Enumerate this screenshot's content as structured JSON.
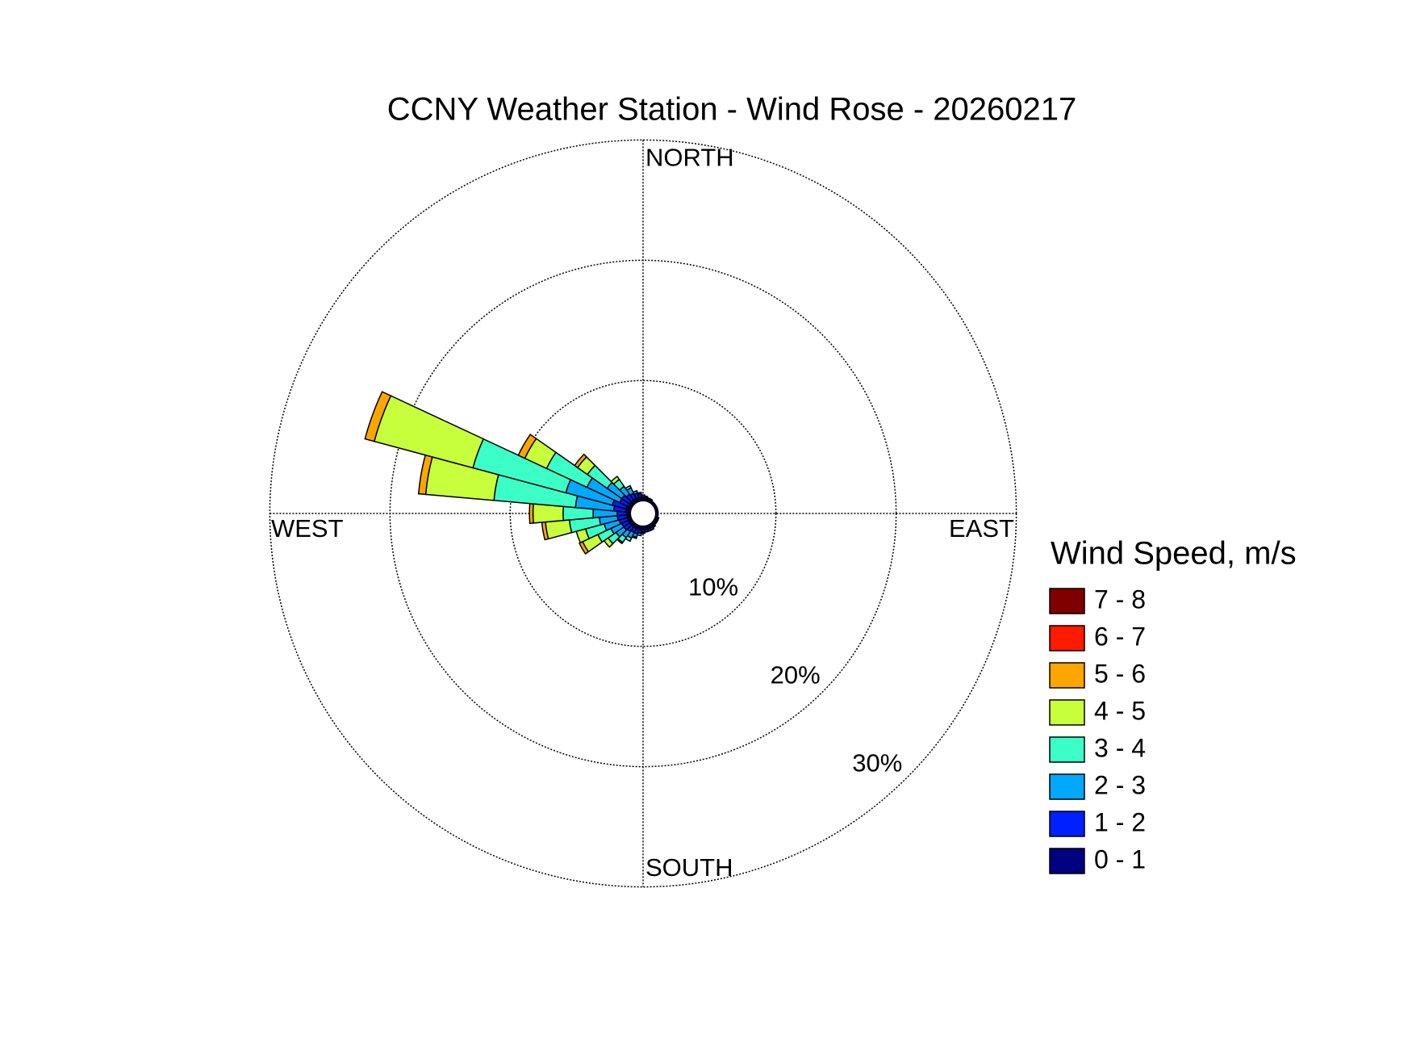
{
  "chart_data": {
    "type": "windrose",
    "title": "CCNY Weather Station - Wind Rose - 20260217",
    "direction_labels": [
      "NORTH",
      "EAST",
      "SOUTH",
      "WEST"
    ],
    "legend_title": "Wind Speed, m/s",
    "x": [
      0,
      10,
      20,
      30,
      40,
      50,
      60,
      70,
      80,
      90,
      100,
      110,
      120,
      130,
      140,
      150,
      160,
      170,
      180,
      190,
      200,
      210,
      220,
      230,
      240,
      250,
      260,
      270,
      280,
      290,
      300,
      310,
      320,
      330,
      340,
      350
    ],
    "rlim": [
      0,
      30
    ],
    "rticks": [
      {
        "value": 10,
        "label": "10%"
      },
      {
        "value": 20,
        "label": "20%"
      },
      {
        "value": 30,
        "label": "30%"
      }
    ],
    "series": [
      {
        "name": "0 - 1",
        "color": "#000080",
        "values": [
          0.3,
          0.3,
          0.2,
          0.2,
          0.2,
          0.2,
          0.2,
          0.2,
          0.2,
          0.2,
          0.2,
          0.2,
          0.2,
          0.2,
          0.3,
          0.3,
          0.3,
          0.3,
          0.3,
          0.3,
          0.3,
          0.3,
          0.3,
          0.3,
          0.3,
          0.3,
          0.3,
          0.3,
          0.4,
          0.4,
          0.3,
          0.3,
          0.3,
          0.3,
          0.3,
          0.3
        ]
      },
      {
        "name": "1 - 2",
        "color": "#0020ff",
        "values": [
          0.2,
          0.1,
          0.1,
          0.1,
          0,
          0,
          0,
          0,
          0,
          0,
          0,
          0.1,
          0.1,
          0.1,
          0.1,
          0.2,
          0.2,
          0.2,
          0.2,
          0.3,
          0.4,
          0.4,
          0.5,
          0.6,
          0.6,
          0.7,
          0.8,
          0.8,
          1.0,
          1.2,
          0.8,
          0.8,
          0.6,
          0.5,
          0.4,
          0.3
        ]
      },
      {
        "name": "2 - 3",
        "color": "#00a8ff",
        "values": [
          0,
          0,
          0,
          0,
          0,
          0,
          0,
          0,
          0,
          0,
          0,
          0,
          0,
          0,
          0,
          0,
          0,
          0,
          0.1,
          0.2,
          0.3,
          0.5,
          0.6,
          0.8,
          1.0,
          1.3,
          1.5,
          2.0,
          3.2,
          4.0,
          3.0,
          1.5,
          0.8,
          0.5,
          0.2,
          0.1
        ]
      },
      {
        "name": "3 - 4",
        "color": "#3cffc8",
        "values": [
          0,
          0,
          0,
          0,
          0,
          0,
          0,
          0,
          0,
          0,
          0,
          0,
          0,
          0,
          0,
          0,
          0,
          0,
          0,
          0,
          0.1,
          0.3,
          0.5,
          0.8,
          1.2,
          1.6,
          2.5,
          2.5,
          6.8,
          8.0,
          3.7,
          2.0,
          0.7,
          0.2,
          0,
          0
        ]
      },
      {
        "name": "4 - 5",
        "color": "#c8ff3c",
        "values": [
          0,
          0,
          0,
          0,
          0,
          0,
          0,
          0,
          0,
          0,
          0,
          0,
          0,
          0,
          0,
          0,
          0,
          0,
          0,
          0,
          0,
          0,
          0.1,
          0.4,
          1.4,
          0.8,
          2.0,
          2.5,
          5.7,
          8.5,
          2.0,
          1.0,
          0.3,
          0,
          0,
          0
        ]
      },
      {
        "name": "5 - 6",
        "color": "#ffa500",
        "values": [
          0,
          0,
          0,
          0,
          0,
          0,
          0,
          0,
          0,
          0,
          0,
          0,
          0,
          0,
          0,
          0,
          0,
          0,
          0,
          0,
          0,
          0,
          0,
          0,
          0.3,
          0,
          0.3,
          0.3,
          0.6,
          0.8,
          0.6,
          0.3,
          0,
          0,
          0,
          0
        ]
      },
      {
        "name": "6 - 7",
        "color": "#ff1a00",
        "values": [
          0,
          0,
          0,
          0,
          0,
          0,
          0,
          0,
          0,
          0,
          0,
          0,
          0,
          0,
          0,
          0,
          0,
          0,
          0,
          0,
          0,
          0,
          0,
          0,
          0,
          0,
          0,
          0,
          0,
          0,
          0,
          0,
          0,
          0,
          0,
          0
        ]
      },
      {
        "name": "7 - 8",
        "color": "#800000",
        "values": [
          0,
          0,
          0,
          0,
          0,
          0,
          0,
          0,
          0,
          0,
          0,
          0,
          0,
          0,
          0,
          0,
          0,
          0,
          0,
          0,
          0,
          0,
          0,
          0,
          0,
          0,
          0,
          0,
          0,
          0,
          0,
          0,
          0,
          0,
          0,
          0
        ]
      }
    ]
  }
}
